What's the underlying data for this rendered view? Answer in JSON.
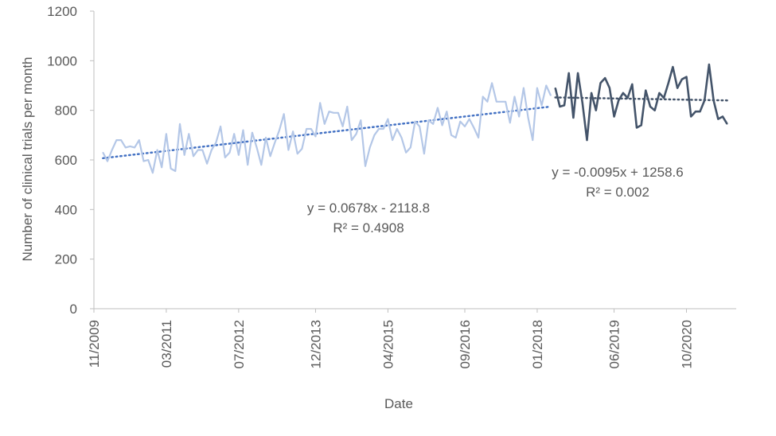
{
  "chart_data": {
    "type": "line",
    "title": "",
    "xlabel": "Date",
    "ylabel": "Number of clinical trials per month",
    "ylim": [
      0,
      1200
    ],
    "yticks": [
      "0",
      "200",
      "400",
      "600",
      "800",
      "1000",
      "1200"
    ],
    "xticks": [
      "11/2009",
      "03/2011",
      "07/2012",
      "12/2013",
      "04/2015",
      "09/2016",
      "01/2018",
      "06/2019",
      "10/2020"
    ],
    "xtick_dates": [
      "2009-11",
      "2011-03",
      "2012-07",
      "2013-12",
      "2015-04",
      "2016-09",
      "2018-01",
      "2019-06",
      "2020-10"
    ],
    "grid": false,
    "legend": "none",
    "series": [
      {
        "color": "#b4c7e7",
        "start": "2010-01",
        "values": [
          630,
          595,
          640,
          680,
          680,
          650,
          655,
          650,
          680,
          595,
          600,
          548,
          640,
          570,
          705,
          565,
          555,
          745,
          620,
          705,
          615,
          640,
          640,
          585,
          640,
          670,
          735,
          610,
          630,
          705,
          620,
          720,
          580,
          710,
          650,
          580,
          690,
          615,
          670,
          720,
          785,
          640,
          715,
          625,
          645,
          725,
          725,
          695,
          830,
          745,
          795,
          790,
          790,
          735,
          815,
          680,
          705,
          760,
          575,
          650,
          700,
          725,
          725,
          765,
          680,
          725,
          690,
          630,
          650,
          755,
          735,
          625,
          760,
          745,
          810,
          740,
          795,
          700,
          690,
          755,
          735,
          765,
          730,
          690,
          855,
          835,
          910,
          835,
          835,
          835,
          750,
          855,
          775,
          890,
          770,
          680,
          890,
          820,
          900,
          860
        ]
      },
      {
        "color": "#44546a",
        "start": "2018-05",
        "values": [
          890,
          815,
          820,
          950,
          770,
          950,
          830,
          680,
          870,
          800,
          910,
          930,
          890,
          775,
          840,
          870,
          850,
          905,
          730,
          740,
          880,
          815,
          800,
          870,
          850,
          910,
          975,
          890,
          925,
          935,
          775,
          795,
          795,
          840,
          985,
          840,
          765,
          775,
          745
        ]
      }
    ],
    "trendlines": [
      {
        "color": "#4472c4",
        "start": "2010-01",
        "end": "2018-04",
        "y_start": 607,
        "y_end": 815,
        "equation": "y = 0.0678x - 2118.8",
        "r2": "R² = 0.4908"
      },
      {
        "color": "#44546a",
        "start": "2018-05",
        "end": "2021-07",
        "y_start": 852,
        "y_end": 840,
        "equation": "y = -0.0095x + 1258.6",
        "r2": "R² = 0.002"
      }
    ]
  }
}
